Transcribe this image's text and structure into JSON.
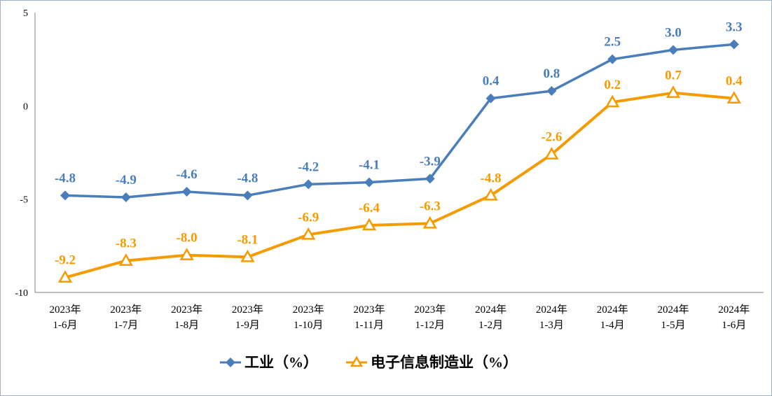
{
  "chart_data": {
    "type": "line",
    "categories": [
      [
        "2023年",
        "1-6月"
      ],
      [
        "2023年",
        "1-7月"
      ],
      [
        "2023年",
        "1-8月"
      ],
      [
        "2023年",
        "1-9月"
      ],
      [
        "2023年",
        "1-10月"
      ],
      [
        "2023年",
        "1-11月"
      ],
      [
        "2023年",
        "1-12月"
      ],
      [
        "2024年",
        "1-2月"
      ],
      [
        "2024年",
        "1-3月"
      ],
      [
        "2024年",
        "1-4月"
      ],
      [
        "2024年",
        "1-5月"
      ],
      [
        "2024年",
        "1-6月"
      ]
    ],
    "series": [
      {
        "name": "工业（%）",
        "color": "#4a7ebb",
        "marker": "diamond",
        "values": [
          -4.8,
          -4.9,
          -4.6,
          -4.8,
          -4.2,
          -4.1,
          -3.9,
          0.4,
          0.8,
          2.5,
          3.0,
          3.3
        ],
        "labels": [
          "-4.8",
          "-4.9",
          "-4.6",
          "-4.8",
          "-4.2",
          "-4.1",
          "-3.9",
          "0.4",
          "0.8",
          "2.5",
          "3.0",
          "3.3"
        ]
      },
      {
        "name": "电子信息制造业（%）",
        "color": "#f59b00",
        "marker": "triangle",
        "values": [
          -9.2,
          -8.3,
          -8.0,
          -8.1,
          -6.9,
          -6.4,
          -6.3,
          -4.8,
          -2.6,
          0.2,
          0.7,
          0.4
        ],
        "labels": [
          "-9.2",
          "-8.3",
          "-8.0",
          "-8.1",
          "-6.9",
          "-6.4",
          "-6.3",
          "-4.8",
          "-2.6",
          "0.2",
          "0.7",
          "0.4"
        ]
      }
    ],
    "yaxis": {
      "min": -10,
      "max": 5,
      "ticks": [
        "5",
        "0",
        "-5",
        "-10"
      ],
      "tick_values": [
        5,
        0,
        -5,
        -10
      ]
    },
    "grid": false,
    "legend_position": "bottom"
  }
}
